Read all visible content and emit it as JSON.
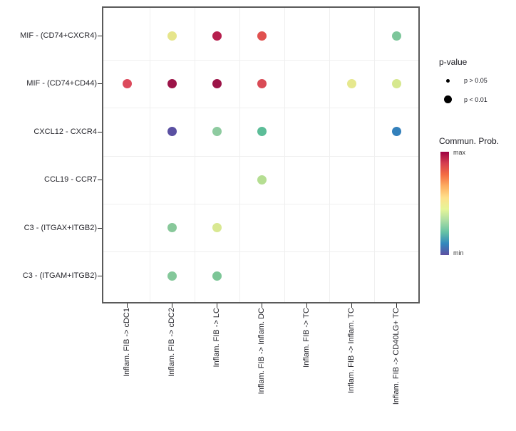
{
  "figure": {
    "panel_border_color": "#5a5a5a",
    "grid_color": "#efefef",
    "axis_text_color": "#26262c",
    "tick_color": "#2a2a2a",
    "background_color": "#ffffff"
  },
  "chart_data": {
    "type": "scatter",
    "subtype": "bubble-dotplot",
    "title": "",
    "xlabel": "",
    "ylabel": "",
    "grid": "minor-only",
    "x_categories": [
      "Inflam. FIB -> cDC1",
      "Inflam. FIB -> cDC2",
      "Inflam. FIB -> LC",
      "Inflam. FIB -> Inflam. DC",
      "Inflam. FIB -> TC",
      "Inflam. FIB -> Inflam. TC",
      "Inflam. FIB -> CD40LG+ TC"
    ],
    "y_categories": [
      "MIF - (CD74+CXCR4)",
      "MIF - (CD74+CD44)",
      "CXCL12 - CXCR4",
      "CCL19 - CCR7",
      "C3 - (ITGAX+ITGB2)",
      "C3 - (ITGAM+ITGB2)"
    ],
    "points": [
      {
        "x_index": 1,
        "y_index": 0,
        "color": "#e6e58b",
        "significance": "p < 0.01"
      },
      {
        "x_index": 2,
        "y_index": 0,
        "color": "#b61e4d",
        "significance": "p < 0.01"
      },
      {
        "x_index": 3,
        "y_index": 0,
        "color": "#e0514f",
        "significance": "p < 0.01"
      },
      {
        "x_index": 6,
        "y_index": 0,
        "color": "#7cc69a",
        "significance": "p < 0.01"
      },
      {
        "x_index": 0,
        "y_index": 1,
        "color": "#dc4a5c",
        "significance": "p < 0.01"
      },
      {
        "x_index": 1,
        "y_index": 1,
        "color": "#9c1448",
        "significance": "p < 0.01"
      },
      {
        "x_index": 2,
        "y_index": 1,
        "color": "#9c1448",
        "significance": "p < 0.01"
      },
      {
        "x_index": 3,
        "y_index": 1,
        "color": "#d94b56",
        "significance": "p < 0.01"
      },
      {
        "x_index": 5,
        "y_index": 1,
        "color": "#e6e88e",
        "significance": "p < 0.01"
      },
      {
        "x_index": 6,
        "y_index": 1,
        "color": "#d6e88e",
        "significance": "p < 0.01"
      },
      {
        "x_index": 1,
        "y_index": 2,
        "color": "#5a50a2",
        "significance": "p < 0.01"
      },
      {
        "x_index": 2,
        "y_index": 2,
        "color": "#8ecba0",
        "significance": "p < 0.01"
      },
      {
        "x_index": 3,
        "y_index": 2,
        "color": "#5cbd98",
        "significance": "p < 0.01"
      },
      {
        "x_index": 6,
        "y_index": 2,
        "color": "#3380bb",
        "significance": "p < 0.01"
      },
      {
        "x_index": 3,
        "y_index": 3,
        "color": "#b5de92",
        "significance": "p < 0.01"
      },
      {
        "x_index": 1,
        "y_index": 4,
        "color": "#88c89a",
        "significance": "p < 0.01"
      },
      {
        "x_index": 2,
        "y_index": 4,
        "color": "#d9e892",
        "significance": "p < 0.01"
      },
      {
        "x_index": 1,
        "y_index": 5,
        "color": "#84c89a",
        "significance": "p < 0.01"
      },
      {
        "x_index": 2,
        "y_index": 5,
        "color": "#7cc697",
        "significance": "p < 0.01"
      }
    ],
    "legends": {
      "pvalue": {
        "title": "p-value",
        "items": [
          {
            "label": "p > 0.05",
            "diameter": 5
          },
          {
            "label": "p < 0.01",
            "diameter": 11
          }
        ]
      },
      "colorbar": {
        "title": "Commun. Prob.",
        "max_label": "max",
        "min_label": "min",
        "legend_position": "right",
        "gradient_top_to_bottom": [
          "#9e0142",
          "#d53e4f",
          "#f46d43",
          "#fdae61",
          "#fee08b",
          "#e6f598",
          "#abdda4",
          "#66c2a5",
          "#3288bd",
          "#5e4fa2"
        ]
      }
    }
  }
}
